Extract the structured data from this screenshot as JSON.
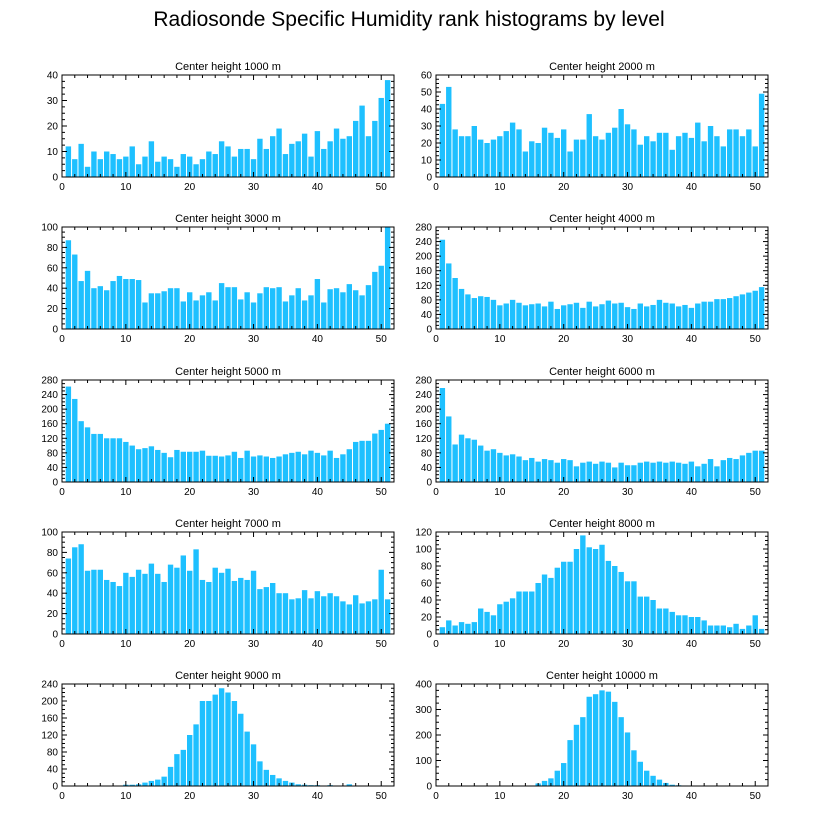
{
  "title": "Radiosonde Specific Humidity rank histograms by level",
  "colors": {
    "bar": "#1ec0ff",
    "bar_edge": "#ffffff",
    "axis": "#000000"
  },
  "chart_data": [
    {
      "type": "bar",
      "title": "Center height 1000 m",
      "xlim": [
        0,
        52
      ],
      "ylim": [
        0,
        40
      ],
      "xticks": [
        0,
        10,
        20,
        30,
        40,
        50
      ],
      "yticks": [
        0,
        10,
        20,
        30,
        40
      ],
      "x": [
        1,
        2,
        3,
        4,
        5,
        6,
        7,
        8,
        9,
        10,
        11,
        12,
        13,
        14,
        15,
        16,
        17,
        18,
        19,
        20,
        21,
        22,
        23,
        24,
        25,
        26,
        27,
        28,
        29,
        30,
        31,
        32,
        33,
        34,
        35,
        36,
        37,
        38,
        39,
        40,
        41,
        42,
        43,
        44,
        45,
        46,
        47,
        48,
        49,
        50,
        51
      ],
      "values": [
        12,
        7,
        13,
        4,
        10,
        7,
        10,
        9,
        7,
        8,
        12,
        5,
        8,
        14,
        6,
        8,
        7,
        4,
        9,
        8,
        5,
        7,
        10,
        9,
        14,
        12,
        8,
        11,
        11,
        7,
        15,
        11,
        16,
        19,
        9,
        13,
        14,
        17,
        8,
        18,
        11,
        14,
        19,
        15,
        16,
        22,
        28,
        16,
        22,
        31,
        38
      ]
    },
    {
      "type": "bar",
      "title": "Center height 2000 m",
      "xlim": [
        0,
        52
      ],
      "ylim": [
        0,
        60
      ],
      "xticks": [
        0,
        10,
        20,
        30,
        40,
        50
      ],
      "yticks": [
        0,
        10,
        20,
        30,
        40,
        50,
        60
      ],
      "x": [
        1,
        2,
        3,
        4,
        5,
        6,
        7,
        8,
        9,
        10,
        11,
        12,
        13,
        14,
        15,
        16,
        17,
        18,
        19,
        20,
        21,
        22,
        23,
        24,
        25,
        26,
        27,
        28,
        29,
        30,
        31,
        32,
        33,
        34,
        35,
        36,
        37,
        38,
        39,
        40,
        41,
        42,
        43,
        44,
        45,
        46,
        47,
        48,
        49,
        50,
        51
      ],
      "values": [
        43,
        53,
        28,
        24,
        24,
        30,
        22,
        20,
        22,
        24,
        27,
        32,
        28,
        15,
        21,
        20,
        29,
        26,
        23,
        28,
        15,
        22,
        22,
        37,
        24,
        22,
        26,
        29,
        40,
        31,
        28,
        19,
        24,
        21,
        26,
        26,
        16,
        24,
        26,
        23,
        32,
        21,
        30,
        24,
        18,
        28,
        28,
        24,
        28,
        18,
        49
      ]
    },
    {
      "type": "bar",
      "title": "Center height 3000 m",
      "xlim": [
        0,
        52
      ],
      "ylim": [
        0,
        100
      ],
      "xticks": [
        0,
        10,
        20,
        30,
        40,
        50
      ],
      "yticks": [
        0,
        20,
        40,
        60,
        80,
        100
      ],
      "x": [
        1,
        2,
        3,
        4,
        5,
        6,
        7,
        8,
        9,
        10,
        11,
        12,
        13,
        14,
        15,
        16,
        17,
        18,
        19,
        20,
        21,
        22,
        23,
        24,
        25,
        26,
        27,
        28,
        29,
        30,
        31,
        32,
        33,
        34,
        35,
        36,
        37,
        38,
        39,
        40,
        41,
        42,
        43,
        44,
        45,
        46,
        47,
        48,
        49,
        50,
        51
      ],
      "values": [
        87,
        73,
        47,
        57,
        40,
        42,
        38,
        47,
        52,
        49,
        49,
        48,
        26,
        35,
        35,
        37,
        40,
        40,
        27,
        36,
        28,
        33,
        36,
        28,
        45,
        41,
        41,
        29,
        36,
        26,
        35,
        41,
        40,
        41,
        27,
        33,
        40,
        28,
        33,
        49,
        26,
        39,
        40,
        36,
        44,
        38,
        33,
        43,
        56,
        62,
        100
      ]
    },
    {
      "type": "bar",
      "title": "Center height 4000 m",
      "xlim": [
        0,
        52
      ],
      "ylim": [
        0,
        280
      ],
      "xticks": [
        0,
        10,
        20,
        30,
        40,
        50
      ],
      "yticks": [
        0,
        40,
        80,
        120,
        160,
        200,
        240,
        280
      ],
      "x": [
        1,
        2,
        3,
        4,
        5,
        6,
        7,
        8,
        9,
        10,
        11,
        12,
        13,
        14,
        15,
        16,
        17,
        18,
        19,
        20,
        21,
        22,
        23,
        24,
        25,
        26,
        27,
        28,
        29,
        30,
        31,
        32,
        33,
        34,
        35,
        36,
        37,
        38,
        39,
        40,
        41,
        42,
        43,
        44,
        45,
        46,
        47,
        48,
        49,
        50,
        51
      ],
      "values": [
        245,
        180,
        140,
        110,
        95,
        85,
        90,
        88,
        80,
        65,
        70,
        80,
        72,
        65,
        68,
        70,
        62,
        75,
        55,
        65,
        68,
        72,
        58,
        75,
        62,
        68,
        78,
        70,
        72,
        60,
        55,
        70,
        62,
        66,
        80,
        72,
        70,
        62,
        66,
        58,
        70,
        75,
        75,
        82,
        82,
        85,
        90,
        95,
        100,
        105,
        115
      ]
    },
    {
      "type": "bar",
      "title": "Center height 5000 m",
      "xlim": [
        0,
        52
      ],
      "ylim": [
        0,
        280
      ],
      "xticks": [
        0,
        10,
        20,
        30,
        40,
        50
      ],
      "yticks": [
        0,
        40,
        80,
        120,
        160,
        200,
        240,
        280
      ],
      "x": [
        1,
        2,
        3,
        4,
        5,
        6,
        7,
        8,
        9,
        10,
        11,
        12,
        13,
        14,
        15,
        16,
        17,
        18,
        19,
        20,
        21,
        22,
        23,
        24,
        25,
        26,
        27,
        28,
        29,
        30,
        31,
        32,
        33,
        34,
        35,
        36,
        37,
        38,
        39,
        40,
        41,
        42,
        43,
        44,
        45,
        46,
        47,
        48,
        49,
        50,
        51
      ],
      "values": [
        262,
        228,
        167,
        150,
        132,
        132,
        120,
        120,
        120,
        110,
        100,
        90,
        93,
        98,
        88,
        80,
        68,
        88,
        83,
        83,
        83,
        86,
        72,
        72,
        70,
        73,
        83,
        66,
        86,
        70,
        73,
        70,
        66,
        70,
        76,
        80,
        83,
        76,
        86,
        80,
        73,
        86,
        66,
        76,
        90,
        110,
        113,
        113,
        133,
        143,
        160
      ]
    },
    {
      "type": "bar",
      "title": "Center height 6000 m",
      "xlim": [
        0,
        52
      ],
      "ylim": [
        0,
        280
      ],
      "xticks": [
        0,
        10,
        20,
        30,
        40,
        50
      ],
      "yticks": [
        0,
        40,
        80,
        120,
        160,
        200,
        240,
        280
      ],
      "x": [
        1,
        2,
        3,
        4,
        5,
        6,
        7,
        8,
        9,
        10,
        11,
        12,
        13,
        14,
        15,
        16,
        17,
        18,
        19,
        20,
        21,
        22,
        23,
        24,
        25,
        26,
        27,
        28,
        29,
        30,
        31,
        32,
        33,
        34,
        35,
        36,
        37,
        38,
        39,
        40,
        41,
        42,
        43,
        44,
        45,
        46,
        47,
        48,
        49,
        50,
        51
      ],
      "values": [
        258,
        180,
        103,
        130,
        120,
        116,
        100,
        86,
        90,
        80,
        73,
        76,
        70,
        60,
        66,
        56,
        63,
        60,
        53,
        63,
        60,
        43,
        53,
        56,
        50,
        56,
        53,
        40,
        53,
        46,
        46,
        53,
        56,
        53,
        56,
        53,
        56,
        53,
        50,
        56,
        43,
        50,
        63,
        43,
        60,
        66,
        63,
        73,
        80,
        86,
        86
      ]
    },
    {
      "type": "bar",
      "title": "Center height 7000 m",
      "xlim": [
        0,
        52
      ],
      "ylim": [
        0,
        100
      ],
      "xticks": [
        0,
        10,
        20,
        30,
        40,
        50
      ],
      "yticks": [
        0,
        20,
        40,
        60,
        80,
        100
      ],
      "x": [
        1,
        2,
        3,
        4,
        5,
        6,
        7,
        8,
        9,
        10,
        11,
        12,
        13,
        14,
        15,
        16,
        17,
        18,
        19,
        20,
        21,
        22,
        23,
        24,
        25,
        26,
        27,
        28,
        29,
        30,
        31,
        32,
        33,
        34,
        35,
        36,
        37,
        38,
        39,
        40,
        41,
        42,
        43,
        44,
        45,
        46,
        47,
        48,
        49,
        50,
        51
      ],
      "values": [
        74,
        85,
        88,
        62,
        63,
        63,
        53,
        51,
        47,
        60,
        56,
        63,
        59,
        69,
        59,
        51,
        68,
        65,
        77,
        62,
        83,
        53,
        51,
        65,
        60,
        64,
        52,
        55,
        53,
        62,
        44,
        46,
        50,
        40,
        40,
        34,
        35,
        43,
        35,
        42,
        37,
        40,
        37,
        32,
        29,
        38,
        30,
        32,
        34,
        63,
        34
      ]
    },
    {
      "type": "bar",
      "title": "Center height 8000 m",
      "xlim": [
        0,
        52
      ],
      "ylim": [
        0,
        120
      ],
      "xticks": [
        0,
        10,
        20,
        30,
        40,
        50
      ],
      "yticks": [
        0,
        20,
        40,
        60,
        80,
        100,
        120
      ],
      "x": [
        1,
        2,
        3,
        4,
        5,
        6,
        7,
        8,
        9,
        10,
        11,
        12,
        13,
        14,
        15,
        16,
        17,
        18,
        19,
        20,
        21,
        22,
        23,
        24,
        25,
        26,
        27,
        28,
        29,
        30,
        31,
        32,
        33,
        34,
        35,
        36,
        37,
        38,
        39,
        40,
        41,
        42,
        43,
        44,
        45,
        46,
        47,
        48,
        49,
        50,
        51
      ],
      "values": [
        8,
        16,
        10,
        14,
        12,
        14,
        30,
        26,
        22,
        35,
        38,
        42,
        50,
        50,
        50,
        60,
        70,
        66,
        78,
        85,
        85,
        100,
        116,
        102,
        100,
        105,
        86,
        80,
        73,
        62,
        62,
        44,
        44,
        40,
        30,
        30,
        26,
        22,
        22,
        20,
        20,
        16,
        10,
        10,
        10,
        8,
        12,
        6,
        10,
        22,
        6
      ]
    },
    {
      "type": "bar",
      "title": "Center height 9000 m",
      "xlim": [
        0,
        52
      ],
      "ylim": [
        0,
        240
      ],
      "xticks": [
        0,
        10,
        20,
        30,
        40,
        50
      ],
      "yticks": [
        0,
        40,
        80,
        120,
        160,
        200,
        240
      ],
      "x": [
        1,
        2,
        3,
        4,
        5,
        6,
        7,
        8,
        9,
        10,
        11,
        12,
        13,
        14,
        15,
        16,
        17,
        18,
        19,
        20,
        21,
        22,
        23,
        24,
        25,
        26,
        27,
        28,
        29,
        30,
        31,
        32,
        33,
        34,
        35,
        36,
        37,
        38,
        39,
        40,
        41,
        42,
        43,
        44,
        45,
        46,
        47,
        48,
        49,
        50,
        51
      ],
      "values": [
        0,
        0,
        0,
        0,
        0,
        0,
        0,
        0,
        0,
        3,
        3,
        4,
        8,
        12,
        15,
        22,
        45,
        75,
        85,
        120,
        145,
        200,
        200,
        215,
        230,
        220,
        200,
        170,
        128,
        98,
        58,
        38,
        26,
        18,
        12,
        8,
        4,
        3,
        2,
        2,
        0,
        2,
        0,
        0,
        4,
        0,
        0,
        0,
        0,
        0,
        0
      ]
    },
    {
      "type": "bar",
      "title": "Center height 10000 m",
      "xlim": [
        0,
        52
      ],
      "ylim": [
        0,
        400
      ],
      "xticks": [
        0,
        10,
        20,
        30,
        40,
        50
      ],
      "yticks": [
        0,
        100,
        200,
        300,
        400
      ],
      "x": [
        1,
        2,
        3,
        4,
        5,
        6,
        7,
        8,
        9,
        10,
        11,
        12,
        13,
        14,
        15,
        16,
        17,
        18,
        19,
        20,
        21,
        22,
        23,
        24,
        25,
        26,
        27,
        28,
        29,
        30,
        31,
        32,
        33,
        34,
        35,
        36,
        37,
        38,
        39,
        40,
        41,
        42,
        43,
        44,
        45,
        46,
        47,
        48,
        49,
        50,
        51
      ],
      "values": [
        0,
        0,
        0,
        0,
        0,
        0,
        0,
        0,
        0,
        0,
        0,
        0,
        0,
        0,
        2,
        10,
        20,
        30,
        60,
        90,
        180,
        240,
        270,
        350,
        360,
        375,
        370,
        330,
        270,
        210,
        140,
        95,
        60,
        40,
        25,
        12,
        5,
        3,
        2,
        0,
        0,
        0,
        0,
        0,
        0,
        0,
        0,
        0,
        0,
        0,
        0
      ]
    }
  ]
}
